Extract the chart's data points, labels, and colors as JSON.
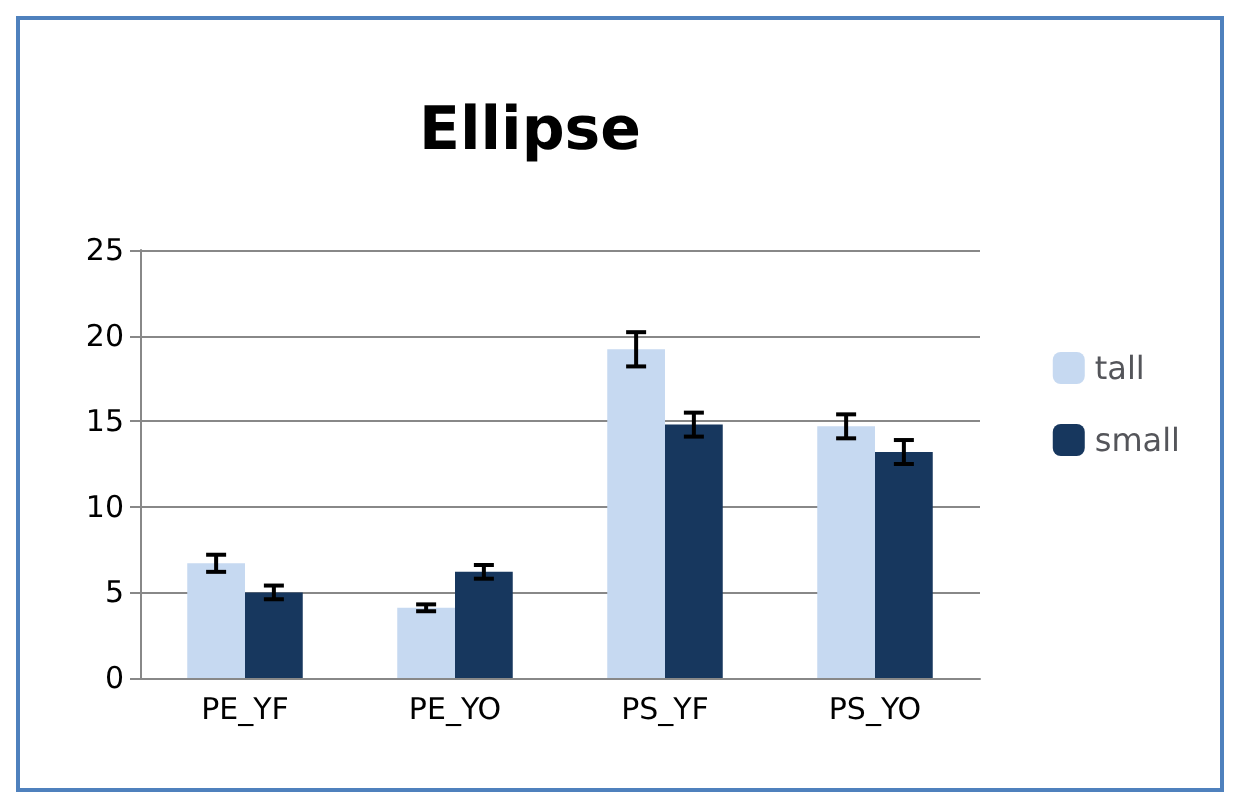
{
  "chart_data": {
    "type": "bar",
    "title": "Ellipse",
    "categories": [
      "PE_YF",
      "PE_YO",
      "PS_YF",
      "PS_YO"
    ],
    "series": [
      {
        "name": "tall",
        "color": "#c6d9f1",
        "values": [
          6.7,
          4.1,
          19.2,
          14.7
        ],
        "errors": [
          0.5,
          0.2,
          1.0,
          0.7
        ]
      },
      {
        "name": "small",
        "color": "#17375e",
        "values": [
          5.0,
          6.2,
          14.8,
          13.2
        ],
        "errors": [
          0.4,
          0.4,
          0.7,
          0.7
        ]
      }
    ],
    "ylim": [
      0,
      25
    ],
    "yticks": [
      0,
      5,
      10,
      15,
      20,
      25
    ],
    "grid": "y",
    "legend": "right"
  }
}
